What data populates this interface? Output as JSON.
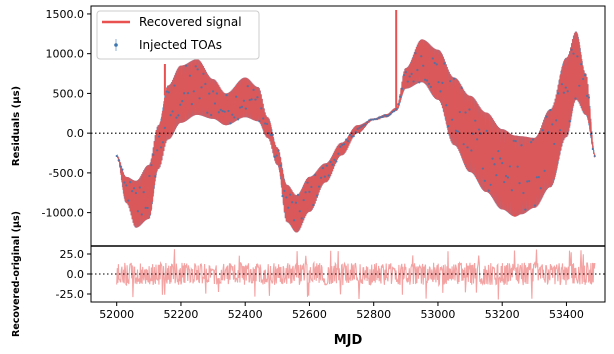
{
  "chart_data": [
    {
      "type": "line",
      "panel": "top",
      "ylabel": "Residuals (μs)",
      "xlim": [
        51920,
        53520
      ],
      "ylim": [
        -1420,
        1600
      ],
      "yticks": [
        -1000,
        -500,
        0,
        500,
        1000,
        1500
      ],
      "ytick_labels": [
        "-1000.0",
        "-500.0",
        "0.0",
        "500.0",
        "1000.0",
        "1500.0"
      ],
      "zero_line": "dotted",
      "legend": {
        "placement": "top-left",
        "entries": [
          "Recovered signal",
          "Injected TOAs"
        ]
      },
      "series": [
        {
          "name": "Recovered signal",
          "color": "#e8514f",
          "envelope": {
            "x": [
              52000,
              52030,
              52060,
              52100,
              52130,
              52160,
              52200,
              52250,
              52300,
              52340,
              52400,
              52440,
              52470,
              52500,
              52530,
              52560,
              52600,
              52650,
              52700,
              52750,
              52800,
              52840,
              52870,
              52900,
              52950,
              53000,
              53050,
              53100,
              53150,
              53200,
              53240,
              53260,
              53300,
              53350,
              53400,
              53430,
              53460,
              53490
            ],
            "upper": [
              -280,
              -550,
              -600,
              -400,
              100,
              600,
              850,
              930,
              680,
              500,
              700,
              580,
              200,
              -180,
              -650,
              -780,
              -550,
              -380,
              -120,
              100,
              180,
              240,
              320,
              820,
              1180,
              1050,
              700,
              470,
              260,
              50,
              -30,
              -40,
              -60,
              300,
              950,
              1280,
              750,
              -280
            ],
            "lower": [
              -300,
              -880,
              -1190,
              -1080,
              -450,
              -80,
              130,
              230,
              180,
              100,
              200,
              150,
              -60,
              -400,
              -1120,
              -1250,
              -990,
              -620,
              -280,
              0,
              170,
              200,
              280,
              560,
              640,
              420,
              -150,
              -490,
              -740,
              -960,
              -1050,
              -1020,
              -940,
              -680,
              -50,
              420,
              230,
              -300
            ]
          },
          "spikes": [
            {
              "x": 52150,
              "y": 870
            },
            {
              "x": 52870,
              "y": 1550
            },
            {
              "x": 53240,
              "y": -1020
            }
          ]
        },
        {
          "name": "Injected TOAs",
          "color": "#3b75af",
          "marker": "point with error bar"
        }
      ]
    },
    {
      "type": "line",
      "panel": "bottom",
      "ylabel": "Recovered-original (μs)",
      "xlabel": "MJD",
      "xlim": [
        51920,
        53520
      ],
      "xticks": [
        52000,
        52200,
        52400,
        52600,
        52800,
        53000,
        53200,
        53400
      ],
      "xtick_labels": [
        "52000",
        "52200",
        "52400",
        "52600",
        "52800",
        "53000",
        "53200",
        "53400"
      ],
      "ylim": [
        -35,
        35
      ],
      "yticks": [
        25,
        0,
        -25
      ],
      "ytick_labels": [
        "25.0",
        "0.0",
        "-25.0"
      ],
      "zero_line": "dotted",
      "series": [
        {
          "name": "Recovered-original",
          "color": "#f4a3a3",
          "x_range": [
            52000,
            53490
          ],
          "amplitude_typical": 14,
          "amplitude_max": 32
        }
      ]
    }
  ]
}
